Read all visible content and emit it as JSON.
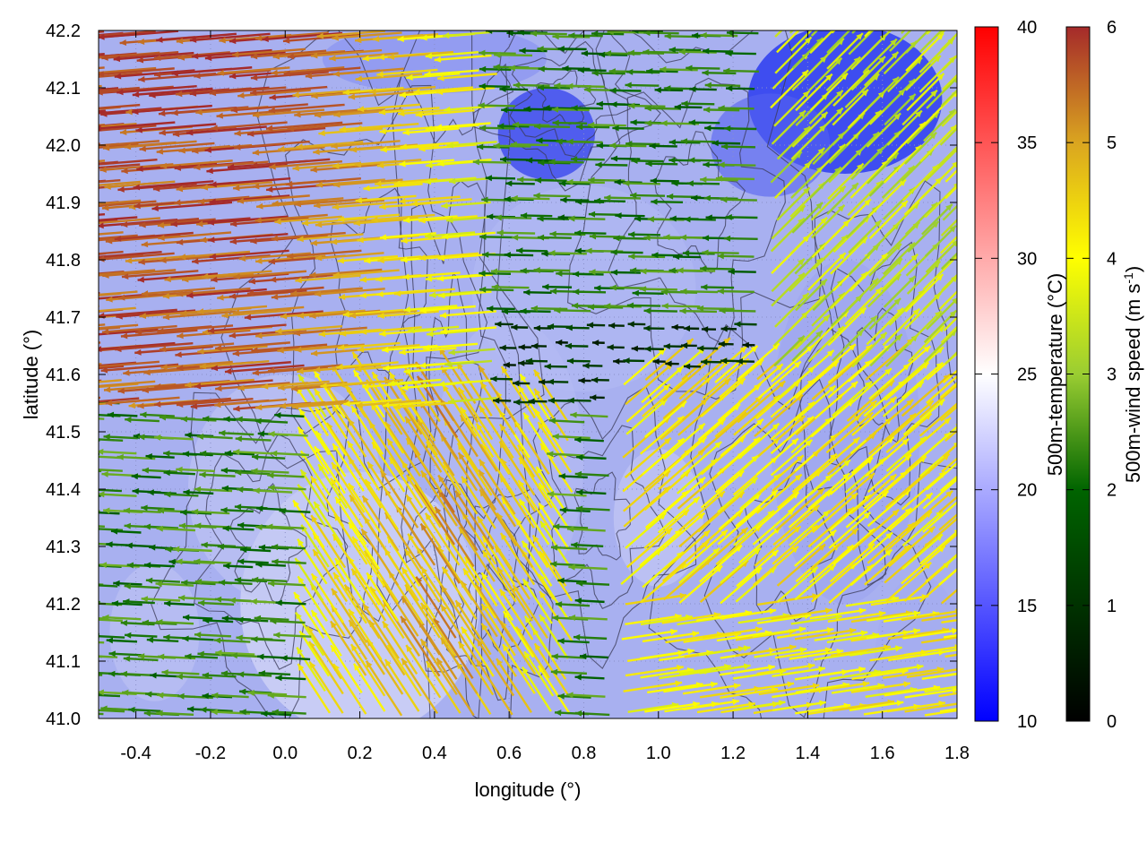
{
  "chart_data": {
    "type": "heatmap",
    "title": "",
    "xlabel": "longitude (°)",
    "ylabel": "latitude (°)",
    "xlim": [
      -0.5,
      1.8
    ],
    "ylim": [
      41.0,
      42.2
    ],
    "x_ticks": [
      "-0.4",
      "-0.2",
      "0.0",
      "0.2",
      "0.4",
      "0.6",
      "0.8",
      "1.0",
      "1.2",
      "1.4",
      "1.6",
      "1.8"
    ],
    "y_ticks": [
      "41.0",
      "41.1",
      "41.2",
      "41.3",
      "41.4",
      "41.5",
      "41.6",
      "41.7",
      "41.8",
      "41.9",
      "42.0",
      "42.1",
      "42.2"
    ],
    "grid": true,
    "background_field": {
      "name": "500m-temperature (°C)",
      "range": [
        10,
        40
      ],
      "ticks": [
        "10",
        "15",
        "20",
        "25",
        "30",
        "35",
        "40"
      ],
      "colors": [
        "#0000ff",
        "#ffffff",
        "#ff0000"
      ]
    },
    "vector_field": {
      "name": "500m-wind speed (m s-1)",
      "range": [
        0,
        6
      ],
      "ticks": [
        "0",
        "1",
        "2",
        "3",
        "4",
        "5",
        "6"
      ],
      "colors": [
        "#000000",
        "#006400",
        "#9acd32",
        "#ffff00",
        "#daa520",
        "#a52a2a"
      ]
    },
    "contours": true
  }
}
